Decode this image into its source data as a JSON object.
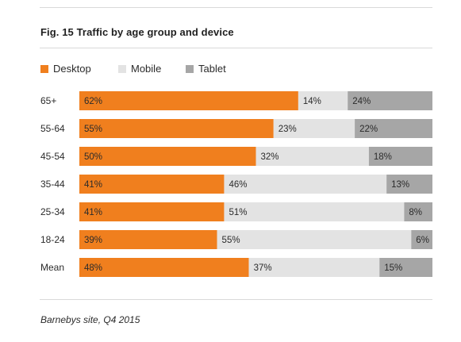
{
  "title": "Fig. 15 Traffic by age group and device",
  "caption": "Barnebys site, Q4 2015",
  "colors": {
    "desktop": "#f07f1e",
    "mobile": "#e3e3e3",
    "tablet": "#a6a6a6",
    "text": "#2b2b2b",
    "rule": "#d9d9d9"
  },
  "chart_data": {
    "type": "bar",
    "orientation": "horizontal",
    "stacked": true,
    "title": "Fig. 15 Traffic by age group and device",
    "xlabel": "",
    "ylabel": "",
    "xlim": [
      0,
      100
    ],
    "grid": false,
    "legend_position": "top-left",
    "categories": [
      "65+",
      "55-64",
      "45-54",
      "35-44",
      "25-34",
      "18-24",
      "Mean"
    ],
    "series": [
      {
        "name": "Desktop",
        "color": "#f07f1e",
        "values": [
          62,
          55,
          50,
          41,
          41,
          39,
          48
        ],
        "labels": [
          "62%",
          "55%",
          "50%",
          "41%",
          "41%",
          "39%",
          "48%"
        ]
      },
      {
        "name": "Mobile",
        "color": "#e3e3e3",
        "values": [
          14,
          23,
          32,
          46,
          51,
          55,
          37
        ],
        "labels": [
          "14%",
          "23%",
          "32%",
          "46%",
          "51%",
          "55%",
          "37%"
        ]
      },
      {
        "name": "Tablet",
        "color": "#a6a6a6",
        "values": [
          24,
          22,
          18,
          13,
          8,
          6,
          15
        ],
        "labels": [
          "24%",
          "22%",
          "18%",
          "13%",
          "8%",
          "6%",
          "15%"
        ]
      }
    ]
  }
}
